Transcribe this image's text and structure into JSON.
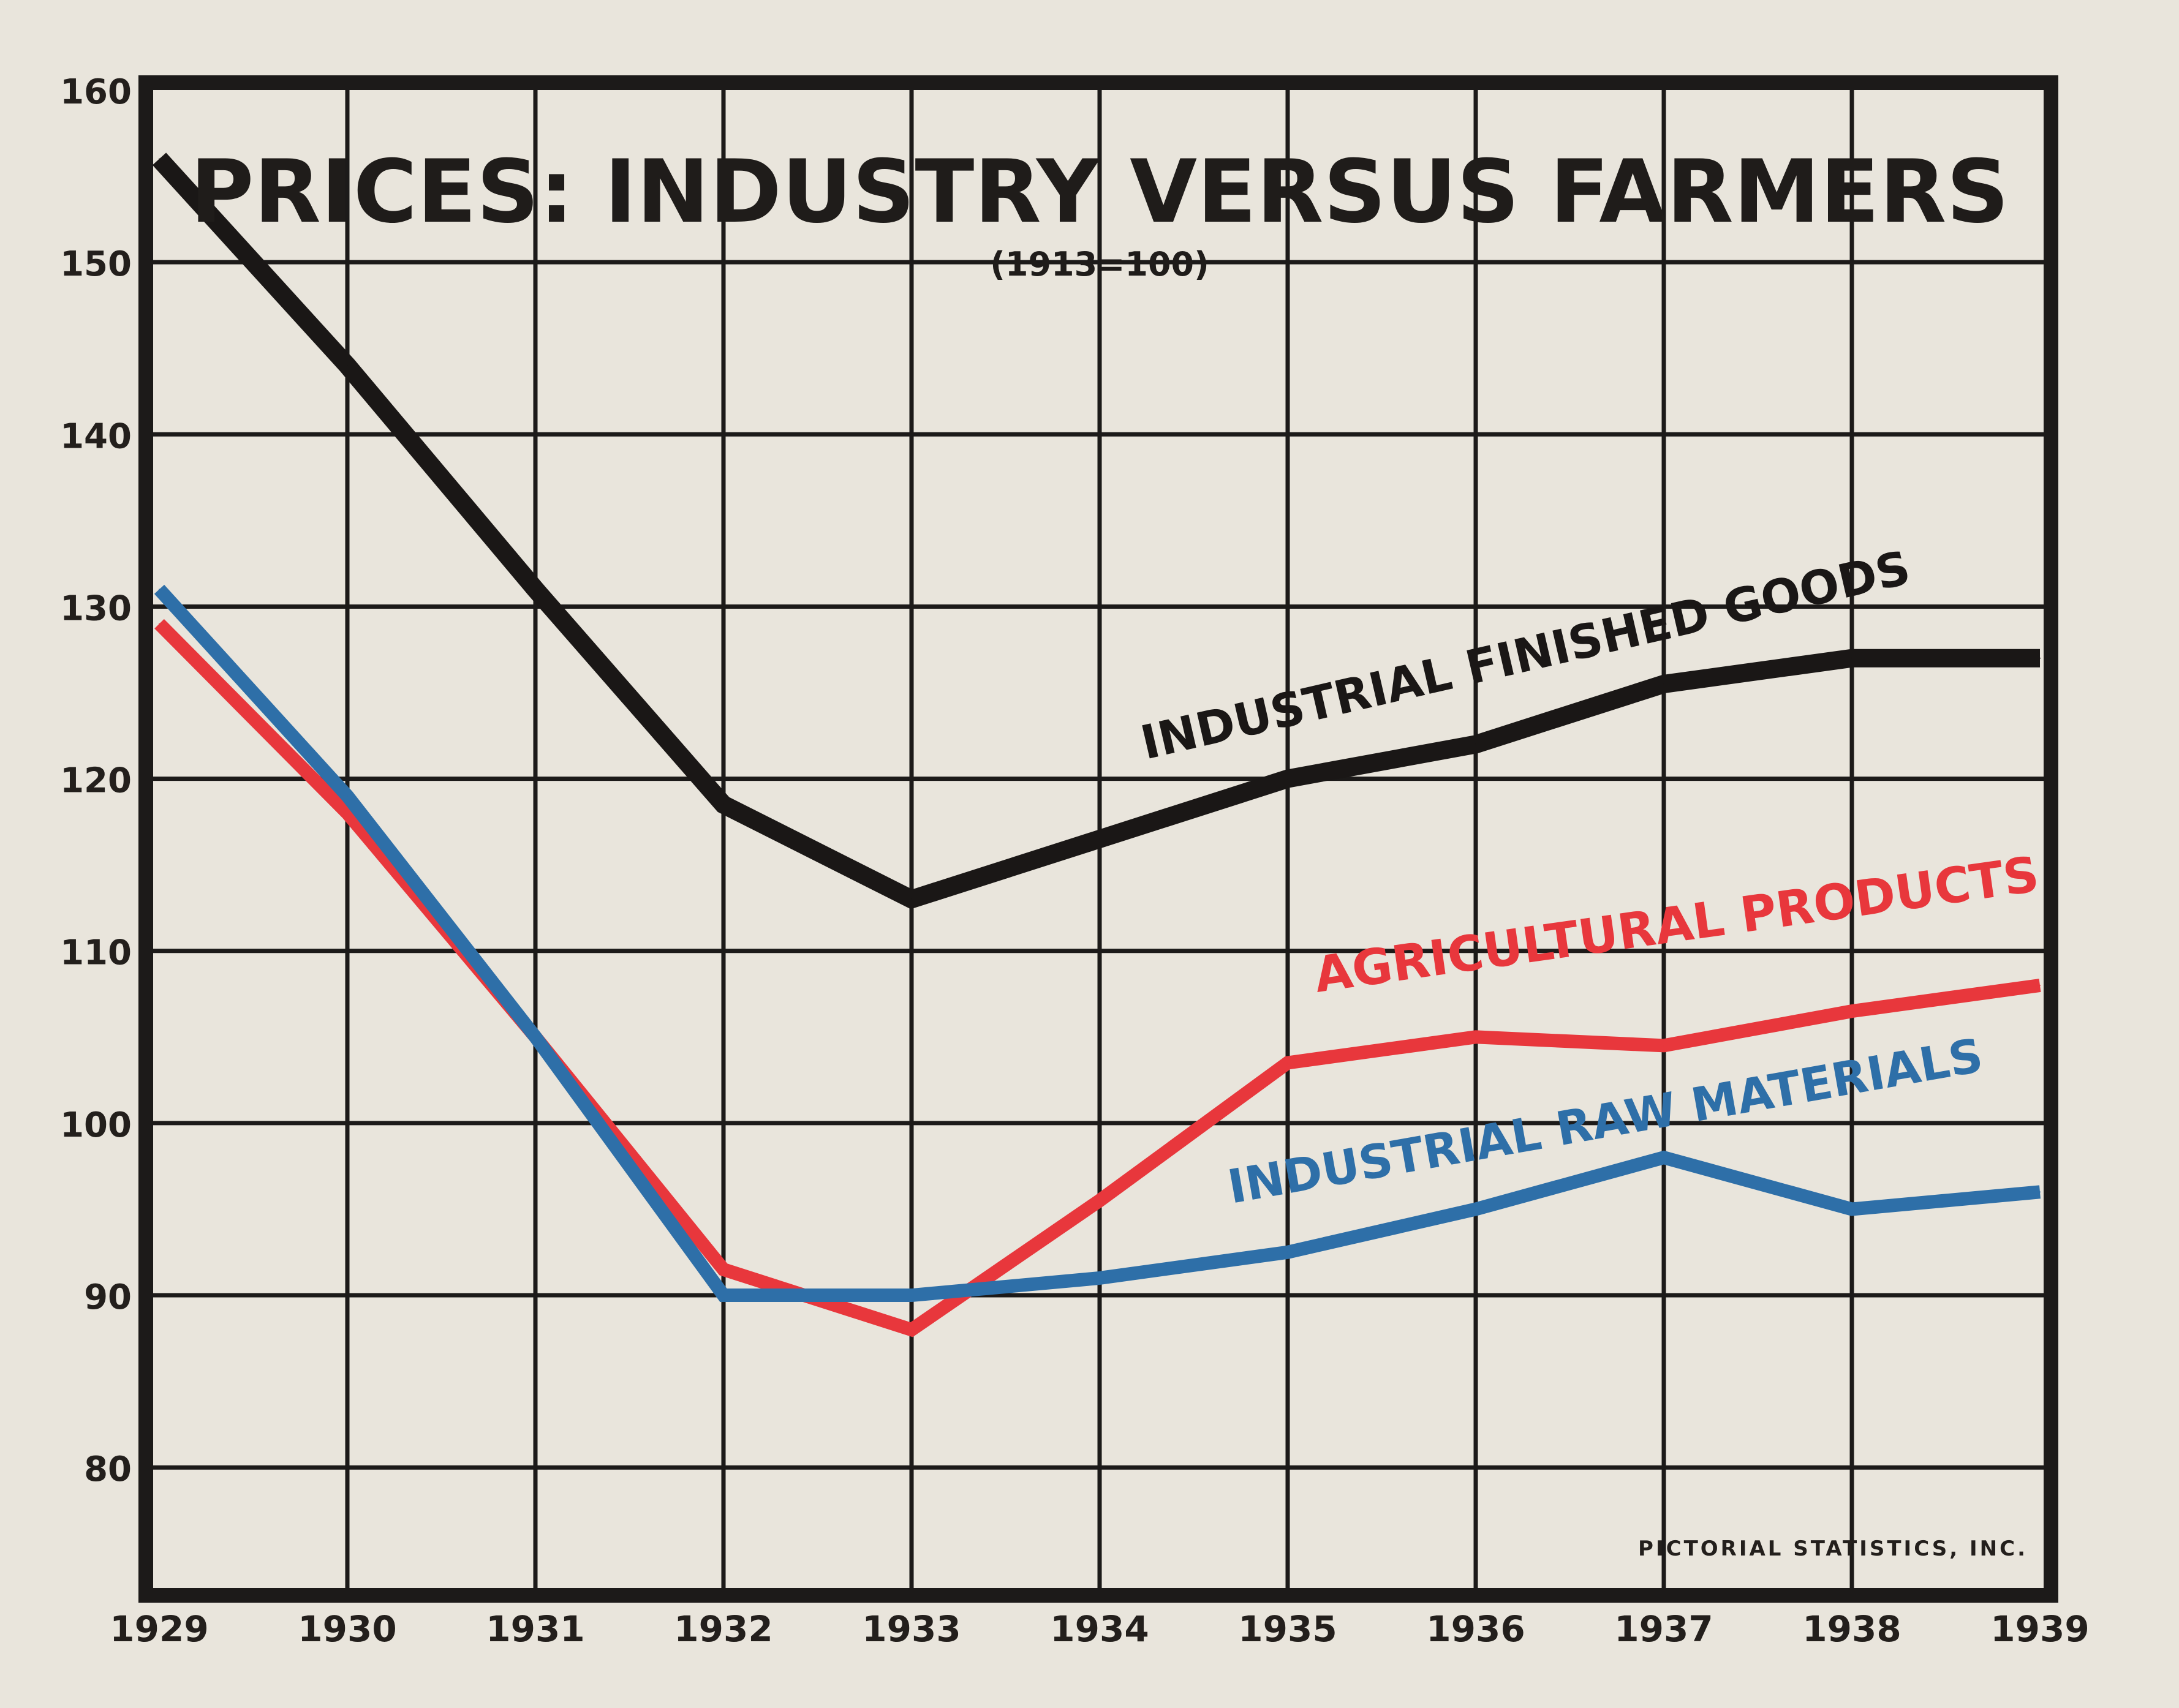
{
  "chart_data": {
    "type": "line",
    "title": "PRICES: INDUSTRY VERSUS FARMERS",
    "subtitle": "(1913=100)",
    "credit": "PICTORIAL STATISTICS, INC.",
    "categories": [
      "1929",
      "1930",
      "1931",
      "1932",
      "1933",
      "1934",
      "1935",
      "1936",
      "1937",
      "1938",
      "1939"
    ],
    "y_ticks": [
      80,
      90,
      100,
      110,
      120,
      130,
      140,
      150,
      160
    ],
    "ylim": [
      73,
      160
    ],
    "grid": true,
    "series": [
      {
        "name": "INDUSTRIAL FINISHED GOODS",
        "color": "#1a1716",
        "values": [
          156,
          144,
          131,
          118.5,
          113,
          116.5,
          120,
          122,
          125.5,
          127,
          127
        ]
      },
      {
        "name": "AGRICULTURAL PRODUCTS",
        "color": "#e8373c",
        "values": [
          129,
          118,
          105,
          91.5,
          88,
          95.5,
          103.5,
          105,
          104.5,
          106.5,
          108
        ]
      },
      {
        "name": "INDUSTRIAL RAW MATERIALS",
        "color": "#2e6fa8",
        "values": [
          131,
          119,
          105,
          90,
          90,
          91,
          92.5,
          95,
          98,
          95,
          96
        ]
      }
    ]
  }
}
